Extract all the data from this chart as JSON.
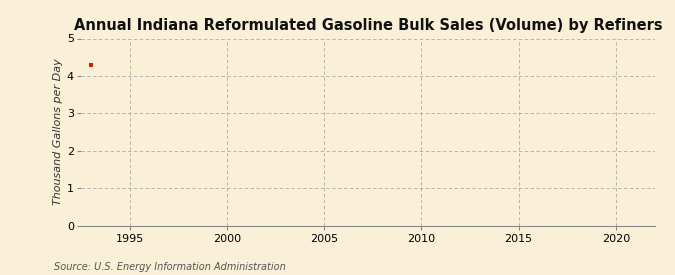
{
  "title": "Annual Indiana Reformulated Gasoline Bulk Sales (Volume) by Refiners",
  "ylabel": "Thousand Gallons per Day",
  "source": "Source: U.S. Energy Information Administration",
  "background_color": "#faf0d7",
  "data_x": [
    1993
  ],
  "data_y": [
    4.3
  ],
  "data_color": "#cc2200",
  "xlim": [
    1992.5,
    2022
  ],
  "ylim": [
    0,
    5
  ],
  "xticks": [
    1995,
    2000,
    2005,
    2010,
    2015,
    2020
  ],
  "yticks": [
    0,
    1,
    2,
    3,
    4,
    5
  ],
  "grid_color": "#999999",
  "title_fontsize": 10.5,
  "label_fontsize": 8,
  "tick_fontsize": 8,
  "source_fontsize": 7
}
